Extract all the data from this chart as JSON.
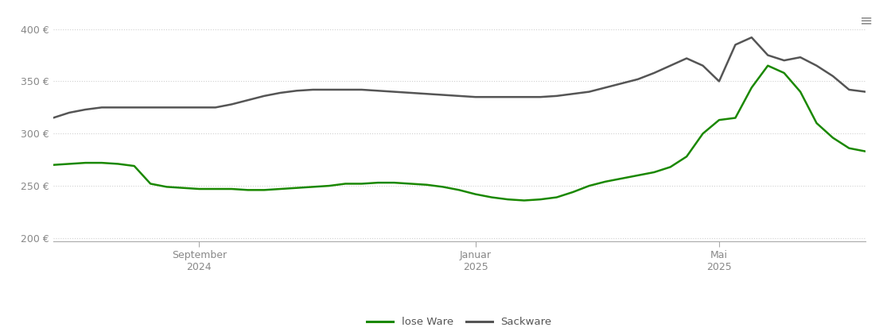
{
  "background_color": "#ffffff",
  "grid_color": "#d0d0d0",
  "line_color_lose": "#1a8800",
  "line_color_sack": "#555555",
  "legend_labels": [
    "lose Ware",
    "Sackware"
  ],
  "yticks": [
    200,
    250,
    300,
    350,
    400
  ],
  "ytick_labels": [
    "200 €",
    "250 €",
    "300 €",
    "350 €",
    "400 €"
  ],
  "ylim": [
    197,
    415
  ],
  "xlim": [
    0,
    100
  ],
  "x_tick_positions": [
    18,
    52,
    82
  ],
  "x_tick_labels": [
    "September\n2024",
    "Januar\n2025",
    "Mai\n2025"
  ],
  "lose_ware_x": [
    0,
    2,
    4,
    6,
    8,
    10,
    12,
    14,
    16,
    18,
    20,
    22,
    24,
    26,
    28,
    30,
    32,
    34,
    36,
    38,
    40,
    42,
    44,
    46,
    48,
    50,
    52,
    54,
    56,
    58,
    60,
    62,
    64,
    66,
    68,
    70,
    72,
    74,
    76,
    78,
    80,
    82,
    84,
    86,
    88,
    90,
    92,
    94,
    96,
    98,
    100
  ],
  "lose_ware_y": [
    270,
    271,
    272,
    272,
    271,
    269,
    252,
    249,
    248,
    247,
    247,
    247,
    246,
    246,
    247,
    248,
    249,
    250,
    252,
    252,
    253,
    253,
    252,
    251,
    249,
    246,
    242,
    239,
    237,
    236,
    237,
    239,
    244,
    250,
    254,
    257,
    260,
    263,
    268,
    278,
    300,
    313,
    315,
    344,
    365,
    358,
    340,
    310,
    296,
    286,
    283
  ],
  "sackware_x": [
    0,
    2,
    4,
    6,
    8,
    10,
    12,
    14,
    16,
    18,
    20,
    22,
    24,
    26,
    28,
    30,
    32,
    34,
    36,
    38,
    40,
    42,
    44,
    46,
    48,
    50,
    52,
    54,
    56,
    58,
    60,
    62,
    64,
    66,
    68,
    70,
    72,
    74,
    76,
    78,
    80,
    82,
    84,
    86,
    88,
    90,
    92,
    94,
    96,
    98,
    100
  ],
  "sackware_y": [
    315,
    320,
    323,
    325,
    325,
    325,
    325,
    325,
    325,
    325,
    325,
    328,
    332,
    336,
    339,
    341,
    342,
    342,
    342,
    342,
    341,
    340,
    339,
    338,
    337,
    336,
    335,
    335,
    335,
    335,
    335,
    336,
    338,
    340,
    344,
    348,
    352,
    358,
    365,
    372,
    365,
    350,
    385,
    392,
    375,
    370,
    373,
    365,
    355,
    342,
    340
  ]
}
